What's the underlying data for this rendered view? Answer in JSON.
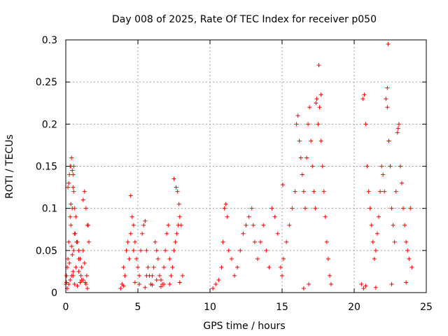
{
  "chart_data": {
    "type": "scatter",
    "title": "Day 008 of 2025, Rate Of TEC Index for receiver p050",
    "xlabel": "GPS time / hours",
    "ylabel": "ROTI / TECUs",
    "xlim": [
      0,
      25
    ],
    "ylim": [
      0,
      0.3
    ],
    "x_ticks": [
      "0",
      "5",
      "10",
      "15",
      "20",
      "25"
    ],
    "y_ticks": [
      "0",
      "0.05",
      "0.1",
      "0.15",
      "0.2",
      "0.25",
      "0.3"
    ],
    "grid": true,
    "marker": "+",
    "color": "#ff0000",
    "series": [
      {
        "x": [
          0.0,
          0.05,
          0.1,
          0.15,
          0.2,
          0.25,
          0.3,
          0.35,
          0.4,
          0.45,
          0.5,
          0.55,
          0.6,
          0.7,
          0.8,
          0.9,
          1.0,
          1.1,
          1.2,
          1.3,
          1.4,
          1.5,
          1.6,
          0.1,
          0.2,
          0.3,
          0.4,
          0.5,
          0.6,
          0.8,
          1.0,
          1.2,
          1.4,
          1.5,
          0.3,
          0.45,
          0.55,
          0.65,
          0.9,
          1.3,
          0.2,
          0.35,
          0.5,
          0.7,
          1.1,
          1.45,
          0.15,
          0.4,
          0.6,
          0.9,
          1.2,
          1.55,
          0.05,
          0.25,
          0.45,
          0.75,
          1.05,
          1.35,
          0.35,
          0.5,
          0.55
        ],
        "y": [
          0.01,
          0.02,
          0.03,
          0.125,
          0.13,
          0.14,
          0.15,
          0.15,
          0.16,
          0.145,
          0.14,
          0.12,
          0.1,
          0.09,
          0.06,
          0.05,
          0.04,
          0.03,
          0.11,
          0.12,
          0.1,
          0.08,
          0.06,
          0.005,
          0.01,
          0.015,
          0.02,
          0.025,
          0.01,
          0.008,
          0.012,
          0.015,
          0.01,
          0.005,
          0.09,
          0.1,
          0.05,
          0.07,
          0.04,
          0.035,
          0.06,
          0.08,
          0.02,
          0.03,
          0.015,
          0.02,
          0.04,
          0.055,
          0.07,
          0.025,
          0.05,
          0.08,
          0.012,
          0.035,
          0.045,
          0.06,
          0.02,
          0.012,
          0.105,
          0.125,
          0.15
        ]
      },
      {
        "x": [
          3.8,
          3.9,
          4.0,
          4.1,
          4.2,
          4.3,
          4.4,
          4.5,
          4.6,
          4.7,
          4.8,
          4.9,
          5.0,
          5.1,
          5.2,
          5.3,
          5.4,
          5.5,
          5.6,
          5.7,
          5.8,
          5.9,
          6.0,
          6.1,
          6.2,
          6.3,
          6.4,
          6.5,
          6.6,
          6.7,
          6.8,
          6.9,
          7.0,
          7.1,
          7.2,
          7.3,
          7.4,
          7.5,
          7.6,
          7.7,
          7.8,
          7.9,
          8.0,
          8.1,
          4.5,
          4.7,
          5.1,
          5.6,
          6.3,
          6.8,
          7.5,
          7.65,
          7.75,
          7.85,
          4.0,
          4.8,
          5.5,
          6.0,
          6.6,
          7.2,
          7.9
        ],
        "y": [
          0.005,
          0.01,
          0.03,
          0.02,
          0.05,
          0.06,
          0.04,
          0.07,
          0.09,
          0.08,
          0.06,
          0.04,
          0.03,
          0.02,
          0.05,
          0.07,
          0.08,
          0.085,
          0.05,
          0.03,
          0.02,
          0.01,
          0.02,
          0.03,
          0.06,
          0.05,
          0.04,
          0.02,
          0.015,
          0.01,
          0.03,
          0.05,
          0.07,
          0.08,
          0.04,
          0.02,
          0.03,
          0.05,
          0.06,
          0.07,
          0.08,
          0.09,
          0.08,
          0.02,
          0.115,
          0.05,
          0.01,
          0.02,
          0.015,
          0.01,
          0.135,
          0.125,
          0.12,
          0.105,
          0.008,
          0.012,
          0.006,
          0.009,
          0.007,
          0.01,
          0.012
        ]
      },
      {
        "x": [
          10.2,
          10.4,
          10.6,
          10.8,
          10.9,
          11.0,
          11.1,
          11.2,
          11.3,
          11.5,
          11.7,
          11.9,
          12.1,
          12.3,
          12.5,
          12.7,
          12.9,
          13.0,
          13.1,
          13.3,
          13.5,
          13.7,
          13.9,
          14.1,
          14.3,
          14.5,
          14.7,
          14.9,
          15.0,
          15.1,
          15.3,
          15.5,
          15.7,
          15.9,
          16.0,
          16.1,
          16.2,
          16.3,
          16.4,
          16.5,
          16.6,
          16.7,
          16.8,
          16.9,
          17.0,
          17.1,
          17.2,
          17.3,
          17.4,
          17.5,
          17.6,
          17.7,
          17.8,
          17.9,
          18.0,
          18.1,
          18.2,
          18.3,
          18.4,
          17.55,
          17.7,
          17.35,
          16.5,
          16.85,
          15.05
        ],
        "y": [
          0.005,
          0.01,
          0.015,
          0.03,
          0.06,
          0.1,
          0.105,
          0.09,
          0.05,
          0.04,
          0.02,
          0.03,
          0.05,
          0.07,
          0.08,
          0.09,
          0.1,
          0.08,
          0.06,
          0.04,
          0.06,
          0.08,
          0.05,
          0.03,
          0.1,
          0.09,
          0.07,
          0.03,
          0.02,
          0.04,
          0.06,
          0.08,
          0.1,
          0.12,
          0.2,
          0.21,
          0.18,
          0.16,
          0.14,
          0.12,
          0.1,
          0.16,
          0.2,
          0.22,
          0.18,
          0.15,
          0.12,
          0.1,
          0.23,
          0.2,
          0.22,
          0.18,
          0.15,
          0.12,
          0.09,
          0.06,
          0.04,
          0.02,
          0.01,
          0.27,
          0.235,
          0.225,
          0.005,
          0.01,
          0.128
        ]
      },
      {
        "x": [
          20.5,
          20.6,
          20.7,
          20.8,
          20.9,
          21.0,
          21.1,
          21.2,
          21.3,
          21.4,
          21.5,
          21.6,
          21.7,
          21.8,
          21.9,
          22.0,
          22.1,
          22.2,
          22.3,
          22.4,
          22.5,
          22.6,
          22.7,
          22.8,
          22.9,
          23.0,
          23.1,
          23.2,
          23.3,
          23.4,
          23.5,
          23.6,
          23.7,
          23.8,
          23.9,
          24.0,
          22.35,
          22.3,
          22.4,
          23.05,
          20.65,
          20.8,
          21.5,
          22.6,
          23.6
        ],
        "y": [
          0.01,
          0.23,
          0.235,
          0.2,
          0.15,
          0.12,
          0.1,
          0.08,
          0.06,
          0.04,
          0.05,
          0.07,
          0.09,
          0.12,
          0.15,
          0.14,
          0.12,
          0.23,
          0.22,
          0.18,
          0.15,
          0.1,
          0.08,
          0.06,
          0.12,
          0.19,
          0.2,
          0.15,
          0.13,
          0.1,
          0.08,
          0.06,
          0.05,
          0.04,
          0.1,
          0.03,
          0.295,
          0.243,
          0.18,
          0.195,
          0.005,
          0.008,
          0.006,
          0.01,
          0.012
        ]
      }
    ]
  }
}
